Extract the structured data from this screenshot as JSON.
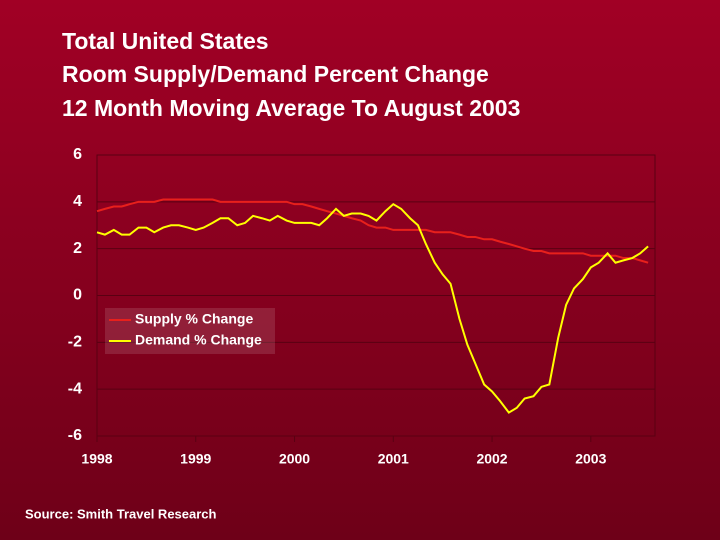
{
  "chart_data": {
    "type": "line",
    "title_lines": [
      "Total United States",
      "Room Supply/Demand Percent Change",
      "12 Month Moving Average To August 2003"
    ],
    "source": "Source: Smith Travel Research",
    "x": [
      1998,
      1998.08,
      1998.17,
      1998.25,
      1998.33,
      1998.42,
      1998.5,
      1998.58,
      1998.67,
      1998.75,
      1998.83,
      1998.92,
      1999,
      1999.08,
      1999.17,
      1999.25,
      1999.33,
      1999.42,
      1999.5,
      1999.58,
      1999.67,
      1999.75,
      1999.83,
      1999.92,
      2000,
      2000.08,
      2000.17,
      2000.25,
      2000.33,
      2000.42,
      2000.5,
      2000.58,
      2000.67,
      2000.75,
      2000.83,
      2000.92,
      2001,
      2001.08,
      2001.17,
      2001.25,
      2001.33,
      2001.42,
      2001.5,
      2001.58,
      2001.67,
      2001.75,
      2001.83,
      2001.92,
      2002,
      2002.08,
      2002.17,
      2002.25,
      2002.33,
      2002.42,
      2002.5,
      2002.58,
      2002.67,
      2002.75,
      2002.83,
      2002.92,
      2003,
      2003.08,
      2003.17,
      2003.25,
      2003.33,
      2003.42,
      2003.5,
      2003.58
    ],
    "series": [
      {
        "name": "Supply % Change",
        "color": "#e8201c",
        "values": [
          3.6,
          3.7,
          3.8,
          3.8,
          3.9,
          4.0,
          4.0,
          4.0,
          4.1,
          4.1,
          4.1,
          4.1,
          4.1,
          4.1,
          4.1,
          4.0,
          4.0,
          4.0,
          4.0,
          4.0,
          4.0,
          4.0,
          4.0,
          4.0,
          3.9,
          3.9,
          3.8,
          3.7,
          3.6,
          3.5,
          3.4,
          3.3,
          3.2,
          3.0,
          2.9,
          2.9,
          2.8,
          2.8,
          2.8,
          2.8,
          2.8,
          2.7,
          2.7,
          2.7,
          2.6,
          2.5,
          2.5,
          2.4,
          2.4,
          2.3,
          2.2,
          2.1,
          2.0,
          1.9,
          1.9,
          1.8,
          1.8,
          1.8,
          1.8,
          1.8,
          1.7,
          1.7,
          1.7,
          1.7,
          1.6,
          1.6,
          1.5,
          1.4
        ]
      },
      {
        "name": "Demand % Change",
        "color": "#ffff00",
        "values": [
          2.7,
          2.6,
          2.8,
          2.6,
          2.6,
          2.9,
          2.9,
          2.7,
          2.9,
          3.0,
          3.0,
          2.9,
          2.8,
          2.9,
          3.1,
          3.3,
          3.3,
          3.0,
          3.1,
          3.4,
          3.3,
          3.2,
          3.4,
          3.2,
          3.1,
          3.1,
          3.1,
          3.0,
          3.3,
          3.7,
          3.4,
          3.5,
          3.5,
          3.4,
          3.2,
          3.6,
          3.9,
          3.7,
          3.3,
          3.0,
          2.2,
          1.4,
          0.9,
          0.5,
          -1.0,
          -2.1,
          -2.9,
          -3.8,
          -4.1,
          -4.5,
          -5.0,
          -4.8,
          -4.4,
          -4.3,
          -3.9,
          -3.8,
          -1.8,
          -0.4,
          0.3,
          0.7,
          1.2,
          1.4,
          1.8,
          1.4,
          1.5,
          1.6,
          1.8,
          2.1
        ]
      }
    ],
    "xlim": [
      1998,
      2003.65
    ],
    "xticks": [
      1998,
      1999,
      2000,
      2001,
      2002,
      2003
    ],
    "ylim": [
      -6,
      6
    ],
    "yticks": [
      -6,
      -4,
      -2,
      0,
      2,
      4,
      6
    ],
    "grid": true,
    "legend": "lower-left"
  }
}
